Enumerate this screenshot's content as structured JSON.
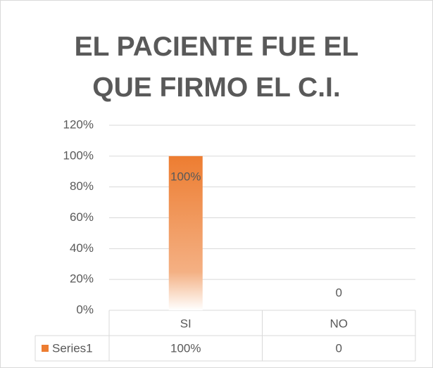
{
  "chart_data": {
    "type": "bar",
    "title": "EL PACIENTE FUE EL QUE FIRMO EL C.I.",
    "categories": [
      "SI",
      "NO"
    ],
    "series": [
      {
        "name": "Series1",
        "color": "#ed7d31",
        "values": [
          100,
          0
        ],
        "value_labels": [
          "100%",
          "0"
        ]
      }
    ],
    "ylim": [
      0,
      120
    ],
    "yticks": [
      {
        "value": 0,
        "label": "0%"
      },
      {
        "value": 20,
        "label": "20%"
      },
      {
        "value": 40,
        "label": "40%"
      },
      {
        "value": 60,
        "label": "60%"
      },
      {
        "value": 80,
        "label": "80%"
      },
      {
        "value": 100,
        "label": "100%"
      },
      {
        "value": 120,
        "label": "120%"
      }
    ],
    "grid": true,
    "data_table": true
  }
}
